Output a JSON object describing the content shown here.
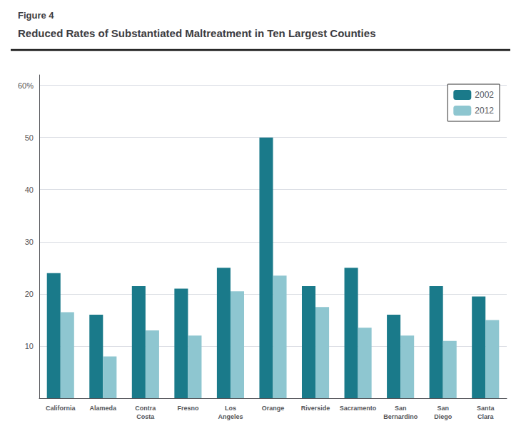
{
  "chart_data": {
    "type": "bar",
    "subtitle": "Figure 4",
    "title": "Reduced Rates of Substantiated Maltreatment in Ten Largest Counties",
    "categories": [
      "California",
      "Alameda",
      "Contra\nCosta",
      "Fresno",
      "Los\nAngeles",
      "Orange",
      "Riverside",
      "Sacramento",
      "San\nBernardino",
      "San\nDiego",
      "Santa\nClara"
    ],
    "series": [
      {
        "name": "2002",
        "color": "#1a7a8a",
        "values": [
          24,
          16,
          21.5,
          21,
          25,
          50,
          21.5,
          25,
          16,
          21.5,
          19.5
        ]
      },
      {
        "name": "2012",
        "color": "#8ec6d0",
        "values": [
          16.5,
          8,
          13,
          12,
          20.5,
          23.5,
          17.5,
          13.5,
          12,
          11,
          15
        ]
      }
    ],
    "ylim": [
      0,
      62
    ],
    "yticks": [
      10,
      20,
      30,
      40,
      50,
      {
        "value": 60,
        "label": "60%"
      }
    ],
    "grid": true,
    "legend": "upper right"
  }
}
